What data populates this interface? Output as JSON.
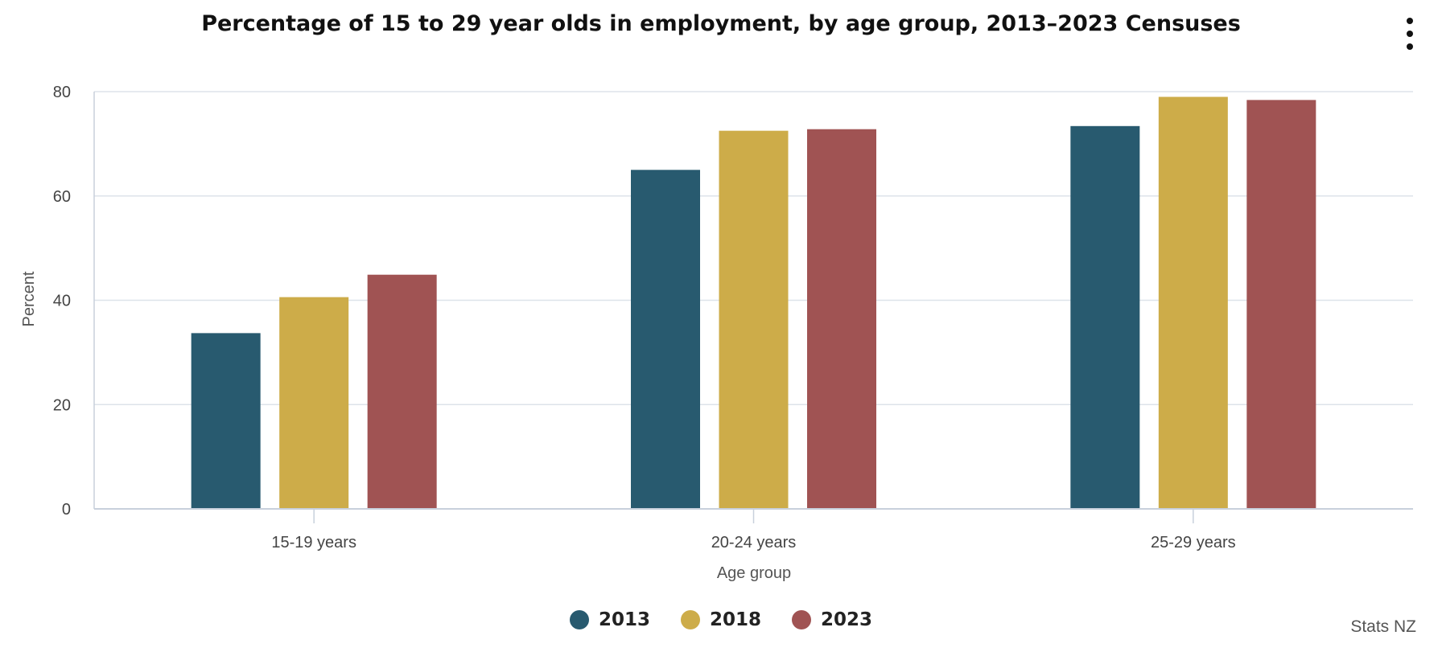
{
  "menu": {
    "icon": "more-vertical-icon"
  },
  "credits": "Stats NZ",
  "chart_data": {
    "type": "bar",
    "title": "Percentage of 15 to 29 year olds in employment, by age group, 2013–2023 Censuses",
    "xlabel": "Age group",
    "ylabel": "Percent",
    "categories": [
      "15-19 years",
      "20-24 years",
      "25-29 years"
    ],
    "ylim": [
      0,
      80
    ],
    "yticks": [
      "0",
      "20",
      "40",
      "60",
      "80"
    ],
    "grid": true,
    "legend_position": "bottom-center",
    "series": [
      {
        "name": "2013",
        "color": "#285A6F",
        "values": [
          33.7,
          65.0,
          73.4
        ]
      },
      {
        "name": "2018",
        "color": "#CDAC49",
        "values": [
          40.6,
          72.5,
          79.0
        ]
      },
      {
        "name": "2023",
        "color": "#A05353",
        "values": [
          44.9,
          72.8,
          78.4
        ]
      }
    ]
  }
}
